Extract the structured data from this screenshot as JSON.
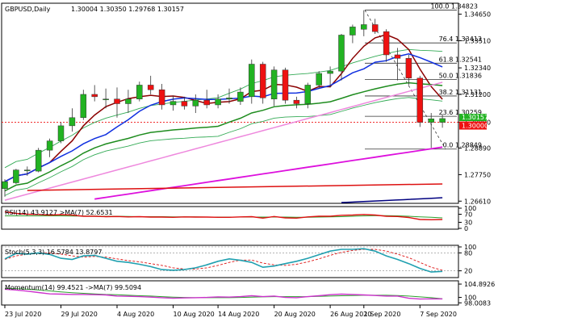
{
  "header": {
    "symbol": "GBPUSD,Daily",
    "ohlc": "1.30004 1.30350 1.29768 1.30157"
  },
  "colors": {
    "bull": "#22b322",
    "bear": "#ee1111",
    "bb": "#33aa55",
    "ma_fast": "#8b0000",
    "ma_blue": "#1030e0",
    "ma_green": "#1e8c1e",
    "ma_pink": "#ee88dd",
    "ma_magenta": "#dd10dd",
    "ma_red": "#dd1010",
    "ma_navy": "#000080",
    "fib": "#333333",
    "price_box": "#ee1111",
    "last_box": "#22b322"
  },
  "chart_data": {
    "type": "candlestick",
    "main": {
      "y_ticks": [
        "1.34650",
        "1.33510",
        "1.32340",
        "1.31200",
        "1.30000",
        "1.28890",
        "1.27750",
        "1.26610"
      ],
      "ylim": [
        1.2655,
        1.3505
      ],
      "current_price_label": "1.30000",
      "last_label": "1.30157",
      "fib_levels": [
        {
          "label": "100.0 1.34823",
          "price": 1.34823
        },
        {
          "label": "76.4 1.33413",
          "price": 1.33413
        },
        {
          "label": "61.8 1.32541",
          "price": 1.32541
        },
        {
          "label": "50.0 1.31836",
          "price": 1.31836
        },
        {
          "label": "38.2 1.31131",
          "price": 1.31131
        },
        {
          "label": "23.6 1.30259",
          "price": 1.30259
        },
        {
          "label": "0.0 1.28849",
          "price": 1.28849
        }
      ],
      "candles": [
        {
          "o": 1.2715,
          "h": 1.2755,
          "l": 1.268,
          "c": 1.2745
        },
        {
          "o": 1.274,
          "h": 1.28,
          "l": 1.2735,
          "c": 1.2795
        },
        {
          "o": 1.2795,
          "h": 1.281,
          "l": 1.277,
          "c": 1.2795
        },
        {
          "o": 1.279,
          "h": 1.289,
          "l": 1.2785,
          "c": 1.288
        },
        {
          "o": 1.288,
          "h": 1.293,
          "l": 1.285,
          "c": 1.292
        },
        {
          "o": 1.292,
          "h": 1.3,
          "l": 1.291,
          "c": 1.2985
        },
        {
          "o": 1.2985,
          "h": 1.306,
          "l": 1.296,
          "c": 1.302
        },
        {
          "o": 1.302,
          "h": 1.314,
          "l": 1.301,
          "c": 1.312
        },
        {
          "o": 1.312,
          "h": 1.316,
          "l": 1.309,
          "c": 1.311
        },
        {
          "o": 1.31,
          "h": 1.3145,
          "l": 1.306,
          "c": 1.31
        },
        {
          "o": 1.31,
          "h": 1.315,
          "l": 1.302,
          "c": 1.308
        },
        {
          "o": 1.308,
          "h": 1.314,
          "l": 1.304,
          "c": 1.31
        },
        {
          "o": 1.31,
          "h": 1.3175,
          "l": 1.309,
          "c": 1.316
        },
        {
          "o": 1.316,
          "h": 1.32,
          "l": 1.312,
          "c": 1.314
        },
        {
          "o": 1.314,
          "h": 1.3165,
          "l": 1.3055,
          "c": 1.3075
        },
        {
          "o": 1.3075,
          "h": 1.3115,
          "l": 1.305,
          "c": 1.309
        },
        {
          "o": 1.309,
          "h": 1.311,
          "l": 1.3055,
          "c": 1.307
        },
        {
          "o": 1.307,
          "h": 1.312,
          "l": 1.304,
          "c": 1.3095
        },
        {
          "o": 1.3095,
          "h": 1.314,
          "l": 1.306,
          "c": 1.3075
        },
        {
          "o": 1.3075,
          "h": 1.312,
          "l": 1.306,
          "c": 1.31
        },
        {
          "o": 1.31,
          "h": 1.3145,
          "l": 1.308,
          "c": 1.3105
        },
        {
          "o": 1.309,
          "h": 1.315,
          "l": 1.3075,
          "c": 1.313
        },
        {
          "o": 1.311,
          "h": 1.327,
          "l": 1.308,
          "c": 1.325
        },
        {
          "o": 1.325,
          "h": 1.326,
          "l": 1.308,
          "c": 1.3105
        },
        {
          "o": 1.31,
          "h": 1.324,
          "l": 1.307,
          "c": 1.3225
        },
        {
          "o": 1.3225,
          "h": 1.3235,
          "l": 1.308,
          "c": 1.3095
        },
        {
          "o": 1.3095,
          "h": 1.311,
          "l": 1.306,
          "c": 1.308
        },
        {
          "o": 1.308,
          "h": 1.317,
          "l": 1.306,
          "c": 1.316
        },
        {
          "o": 1.316,
          "h": 1.322,
          "l": 1.3145,
          "c": 1.321
        },
        {
          "o": 1.321,
          "h": 1.324,
          "l": 1.315,
          "c": 1.322
        },
        {
          "o": 1.322,
          "h": 1.338,
          "l": 1.318,
          "c": 1.3375
        },
        {
          "o": 1.3375,
          "h": 1.342,
          "l": 1.334,
          "c": 1.341
        },
        {
          "o": 1.34,
          "h": 1.3482,
          "l": 1.337,
          "c": 1.342
        },
        {
          "o": 1.342,
          "h": 1.3445,
          "l": 1.338,
          "c": 1.339
        },
        {
          "o": 1.339,
          "h": 1.34,
          "l": 1.326,
          "c": 1.329
        },
        {
          "o": 1.329,
          "h": 1.332,
          "l": 1.318,
          "c": 1.3275
        },
        {
          "o": 1.3275,
          "h": 1.329,
          "l": 1.316,
          "c": 1.319
        },
        {
          "o": 1.319,
          "h": 1.32,
          "l": 1.298,
          "c": 1.3
        },
        {
          "o": 1.3,
          "h": 1.304,
          "l": 1.289,
          "c": 1.3015
        },
        {
          "o": 1.3,
          "h": 1.3035,
          "l": 1.2977,
          "c": 1.3016
        }
      ]
    },
    "x_ticks": [
      "23 Jul 2020",
      "29 Jul 2020",
      "4 Aug 2020",
      "10 Aug 2020",
      "14 Aug 2020",
      "20 Aug 2020",
      "26 Aug 2020",
      "1 Sep 2020",
      "7 Sep 2020"
    ],
    "rsi": {
      "legend": "RSI(14) 43.9127  >MA(7) 52.6531",
      "ticks": [
        "100",
        "70",
        "30",
        "0"
      ],
      "ylim": [
        0,
        100
      ],
      "rsi": [
        82,
        74,
        70,
        69,
        66,
        68,
        66,
        60,
        60,
        58,
        59,
        57,
        58,
        56,
        56,
        55,
        57,
        56,
        56,
        55,
        55,
        57,
        58,
        51,
        59,
        52,
        51,
        57,
        60,
        60,
        65,
        66,
        69,
        66,
        60,
        59,
        54,
        44,
        43,
        44
      ],
      "ma": [
        62,
        62,
        62,
        62,
        62,
        62,
        61,
        61,
        61,
        60,
        60,
        59,
        58,
        58,
        58,
        57,
        57,
        57,
        56,
        56,
        56,
        56,
        56,
        56,
        56,
        56,
        55,
        55,
        56,
        57,
        58,
        60,
        62,
        63,
        63,
        62,
        60,
        57,
        55,
        52
      ]
    },
    "stoch": {
      "legend": "Stoch(5,3,3) 16.5784  13.8797",
      "ticks": [
        "100",
        "80",
        "20"
      ],
      "ylim": [
        0,
        100
      ],
      "k": [
        60,
        78,
        76,
        80,
        75,
        62,
        58,
        70,
        72,
        62,
        52,
        48,
        42,
        34,
        24,
        22,
        24,
        30,
        40,
        52,
        60,
        55,
        48,
        32,
        36,
        44,
        52,
        62,
        74,
        86,
        92,
        92,
        94,
        86,
        70,
        58,
        44,
        28,
        16,
        18
      ],
      "d": [
        58,
        70,
        76,
        80,
        80,
        76,
        70,
        66,
        68,
        66,
        60,
        54,
        50,
        44,
        38,
        30,
        26,
        26,
        30,
        38,
        48,
        56,
        56,
        46,
        40,
        38,
        42,
        50,
        60,
        72,
        82,
        88,
        92,
        92,
        86,
        76,
        64,
        48,
        32,
        22
      ]
    },
    "momentum": {
      "legend": "Momentum(14) 99.4521  ->MA(7) 99.5094",
      "ticks": [
        "104.8926",
        "100",
        "98.0083"
      ],
      "ylim": [
        97.5,
        105.5
      ],
      "mom": [
        103.0,
        102.7,
        102.3,
        101.8,
        101.3,
        101.2,
        101.1,
        101.1,
        101.0,
        100.9,
        100.5,
        100.4,
        100.3,
        100.1,
        99.9,
        99.7,
        99.8,
        99.9,
        100.0,
        100.2,
        100.1,
        100.3,
        100.6,
        100.3,
        100.5,
        100.0,
        99.9,
        100.3,
        100.6,
        101.0,
        101.2,
        101.1,
        100.9,
        100.7,
        100.5,
        100.5,
        99.7,
        99.4,
        99.5,
        99.45
      ],
      "ma": [
        103.3,
        103.2,
        103.0,
        102.7,
        102.4,
        102.0,
        101.7,
        101.5,
        101.3,
        101.1,
        101.0,
        100.8,
        100.6,
        100.5,
        100.3,
        100.1,
        100.0,
        99.9,
        99.9,
        99.9,
        99.9,
        100.0,
        100.1,
        100.2,
        100.3,
        100.3,
        100.3,
        100.3,
        100.4,
        100.5,
        100.6,
        100.7,
        100.8,
        100.8,
        100.8,
        100.7,
        100.5,
        100.2,
        99.9,
        99.5
      ]
    }
  }
}
